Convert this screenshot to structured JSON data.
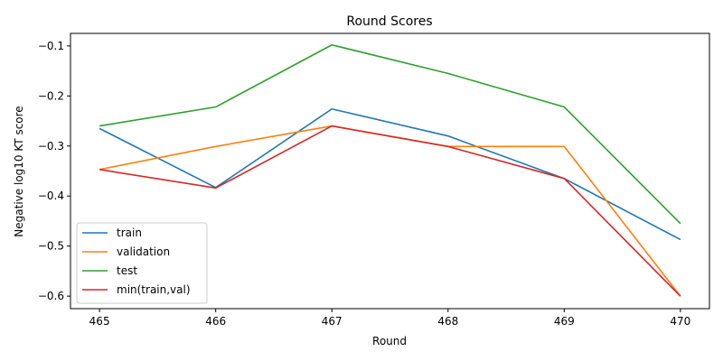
{
  "chart_data": {
    "type": "line",
    "title": "Round Scores",
    "xlabel": "Round",
    "ylabel": "Negative log10 KT score",
    "x": [
      465,
      466,
      467,
      468,
      469,
      470
    ],
    "xlim": [
      464.75,
      470.25
    ],
    "ylim": [
      -0.625,
      -0.075
    ],
    "xticks": [
      "465",
      "466",
      "467",
      "468",
      "469",
      "470"
    ],
    "yticks": [
      "−0.6",
      "−0.5",
      "−0.4",
      "−0.3",
      "−0.2",
      "−0.1"
    ],
    "ytick_values": [
      -0.6,
      -0.5,
      -0.4,
      -0.3,
      -0.2,
      -0.1
    ],
    "grid": false,
    "legend_position": "lower-left",
    "series": [
      {
        "name": "train",
        "color": "#1f77b4",
        "values": [
          -0.265,
          -0.383,
          -0.226,
          -0.28,
          -0.365,
          -0.487
        ]
      },
      {
        "name": "validation",
        "color": "#ff7f0e",
        "values": [
          -0.347,
          -0.301,
          -0.26,
          -0.301,
          -0.301,
          -0.6
        ]
      },
      {
        "name": "test",
        "color": "#2ca02c",
        "values": [
          -0.26,
          -0.222,
          -0.098,
          -0.155,
          -0.222,
          -0.455
        ]
      },
      {
        "name": "min(train,val)",
        "color": "#d62728",
        "values": [
          -0.347,
          -0.384,
          -0.26,
          -0.301,
          -0.365,
          -0.6
        ]
      }
    ]
  }
}
